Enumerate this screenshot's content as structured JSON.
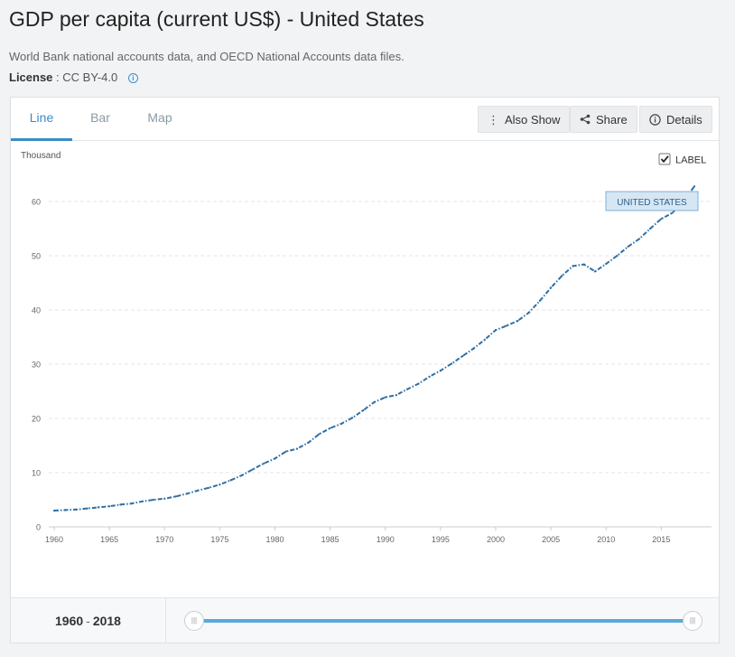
{
  "page": {
    "title": "GDP per capita (current US$) - United States",
    "source": "World Bank national accounts data, and OECD National Accounts data files.",
    "license_label": "License",
    "license_sep": ":",
    "license_value": "CC BY-4.0"
  },
  "tabs": [
    {
      "label": "Line",
      "active": true
    },
    {
      "label": "Bar",
      "active": false
    },
    {
      "label": "Map",
      "active": false
    }
  ],
  "toolbar": {
    "also_show": "Also Show",
    "share": "Share",
    "details": "Details"
  },
  "label_toggle": {
    "text": "LABEL",
    "checked": true
  },
  "footer": {
    "range_start": "1960",
    "range_sep": "-",
    "range_end": "2018"
  },
  "icons": {
    "also_show": "vertical-dots-icon",
    "share": "share-icon",
    "details": "info-circle-icon",
    "license_info": "info-icon",
    "label_checkbox": "checkbox-icon"
  },
  "colors": {
    "line": "#2e6fa5",
    "accent": "#3b8ac4",
    "label_bg": "#d6e6f3",
    "slider": "#5aa8d8"
  },
  "chart_data": {
    "type": "line",
    "ylabel": "Thousand",
    "xlim": [
      1960,
      2018
    ],
    "ylim": [
      0,
      60
    ],
    "x_ticks": [
      1960,
      1965,
      1970,
      1975,
      1980,
      1985,
      1990,
      1995,
      2000,
      2005,
      2010,
      2015
    ],
    "y_ticks": [
      0,
      10,
      20,
      30,
      40,
      50,
      60
    ],
    "grid": true,
    "series": [
      {
        "name": "UNITED STATES",
        "x": [
          1960,
          1961,
          1962,
          1963,
          1964,
          1965,
          1966,
          1967,
          1968,
          1969,
          1970,
          1971,
          1972,
          1973,
          1974,
          1975,
          1976,
          1977,
          1978,
          1979,
          1980,
          1981,
          1982,
          1983,
          1984,
          1985,
          1986,
          1987,
          1988,
          1989,
          1990,
          1991,
          1992,
          1993,
          1994,
          1995,
          1996,
          1997,
          1998,
          1999,
          2000,
          2001,
          2002,
          2003,
          2004,
          2005,
          2006,
          2007,
          2008,
          2009,
          2010,
          2011,
          2012,
          2013,
          2014,
          2015,
          2016,
          2017,
          2018
        ],
        "values": [
          3.0,
          3.1,
          3.2,
          3.4,
          3.6,
          3.8,
          4.1,
          4.3,
          4.7,
          5.0,
          5.2,
          5.6,
          6.1,
          6.7,
          7.2,
          7.8,
          8.6,
          9.5,
          10.6,
          11.7,
          12.6,
          13.9,
          14.4,
          15.5,
          17.1,
          18.2,
          19.0,
          20.1,
          21.5,
          23.0,
          23.9,
          24.3,
          25.4,
          26.4,
          27.7,
          28.8,
          30.1,
          31.5,
          32.9,
          34.5,
          36.3,
          37.1,
          38.0,
          39.5,
          41.7,
          44.1,
          46.3,
          48.1,
          48.4,
          47.1,
          48.5,
          50.0,
          51.7,
          53.1,
          55.0,
          56.8,
          57.9,
          60.0,
          62.8
        ]
      }
    ],
    "series_label": "UNITED STATES"
  }
}
